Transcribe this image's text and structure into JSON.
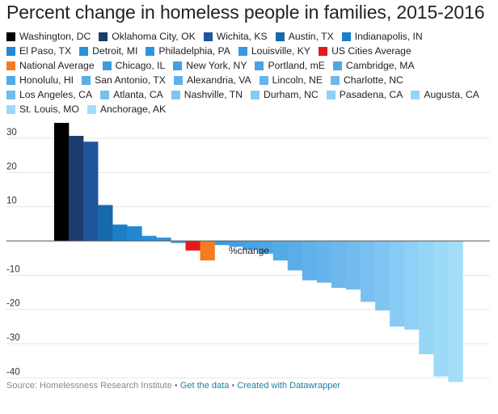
{
  "title": "Percent change in homeless people in families, 2015-2016",
  "footer": {
    "source": "Source: Homelessness Research Institute",
    "sep1": " • ",
    "get_data": "Get the data",
    "sep2": " • ",
    "created_with": "Created with Datawrapper"
  },
  "chart_data": {
    "type": "bar",
    "title": "Percent change in homeless people in families, 2015-2016",
    "axis_label": "%change",
    "xlabel": "",
    "ylabel": "",
    "ylim": [
      -42,
      36
    ],
    "yticks": [
      30,
      20,
      10,
      -10,
      -20,
      -30,
      -40
    ],
    "grid": true,
    "legend_position": "top",
    "categories": [
      "Washington, DC",
      "Oklahoma City, OK",
      "Wichita, KS",
      "Austin, TX",
      "Indianapolis, IN",
      "El Paso, TX",
      "Detroit, MI",
      "Philadelphia, PA",
      "Louisville, KY",
      "US Cities Average",
      "National Average",
      "Chicago, IL",
      "New York, NY",
      "Portland, mE",
      "Cambridge, MA",
      "Honolulu, HI",
      "San Antonio, TX",
      "Alexandria, VA",
      "Lincoln, NE",
      "Charlotte, NC",
      "Los Angeles, CA",
      "Atlanta, CA",
      "Nashville, TN",
      "Durham, NC",
      "Pasadena, CA",
      "Augusta, CA",
      "St. Louis, MO",
      "Anchorage, AK"
    ],
    "values": [
      34.5,
      30.7,
      29.0,
      10.5,
      4.8,
      4.3,
      1.5,
      1.0,
      -0.6,
      -2.8,
      -5.7,
      -1.2,
      -1.7,
      -2.5,
      -3.7,
      -5.7,
      -8.6,
      -11.5,
      -12.2,
      -13.7,
      -14.2,
      -17.8,
      -20.3,
      -25.0,
      -25.9,
      -33.1,
      -39.6,
      -41.2
    ],
    "colors": [
      "#000000",
      "#1d3c6e",
      "#20559b",
      "#1669ae",
      "#1b7fc8",
      "#2288d5",
      "#2a8fd9",
      "#3094dc",
      "#3898de",
      "#e31a1c",
      "#f47c20",
      "#3d9be0",
      "#439fe2",
      "#48a2e3",
      "#4ea6e5",
      "#54aae7",
      "#5aade8",
      "#60b1ea",
      "#66b4eb",
      "#6db8ed",
      "#73bbee",
      "#79c0f0",
      "#80c5f2",
      "#87cbf4",
      "#8ed0f6",
      "#95d6f7",
      "#9cdaf8",
      "#a3def9"
    ]
  }
}
